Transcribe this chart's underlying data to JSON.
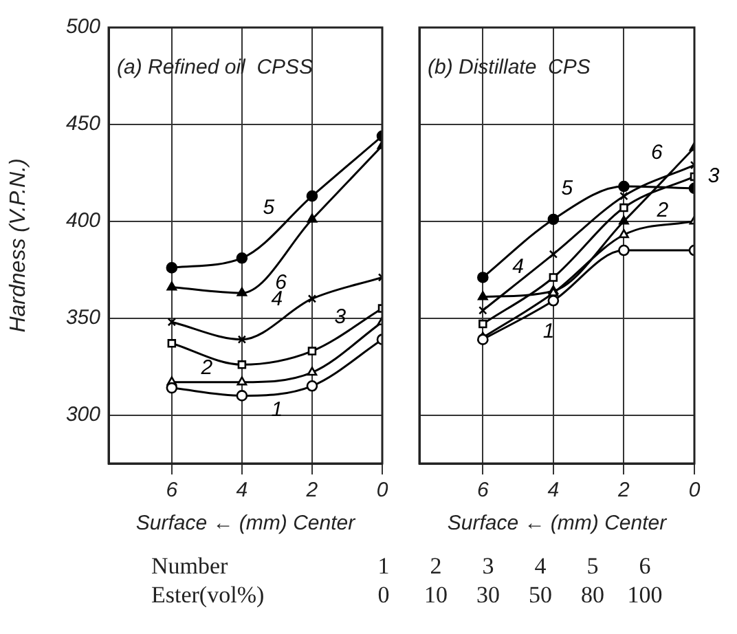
{
  "chart_data": [
    {
      "type": "line",
      "title": "(a) Refined oil  CPSS",
      "xlabel": "Surface ← (mm) Center",
      "ylabel": "Hardness (V.P.N.)",
      "x": [
        6,
        4,
        2,
        0
      ],
      "xlim": [
        7.8,
        0
      ],
      "xticks": [
        6,
        4,
        2,
        0
      ],
      "ylim": [
        275,
        500
      ],
      "yticks": [
        300,
        350,
        400,
        450,
        500
      ],
      "grid": true,
      "legend": false,
      "line_style": "solid",
      "series": [
        {
          "name": "1",
          "color": "#000000",
          "marker": "circle",
          "values": [
            314,
            310,
            315,
            339
          ]
        },
        {
          "name": "2",
          "color": "#000000",
          "marker": "triangle",
          "values": [
            317,
            317,
            322,
            348
          ]
        },
        {
          "name": "3",
          "color": "#000000",
          "marker": "square",
          "values": [
            337,
            326,
            333,
            355
          ]
        },
        {
          "name": "4",
          "color": "#000000",
          "marker": "cross",
          "values": [
            348,
            339,
            360,
            371
          ]
        },
        {
          "name": "5",
          "color": "#000000",
          "marker": "circle",
          "values": [
            376,
            381,
            413,
            444
          ]
        },
        {
          "name": "6",
          "color": "#000000",
          "marker": "triangle",
          "values": [
            366,
            363,
            401,
            439
          ]
        }
      ],
      "annotations": [
        "Number 1 2 3 4 5 6",
        "Ester(vol%) 0 10 30 50 80 100"
      ]
    },
    {
      "type": "line",
      "title": "(b) Distillate  CPS",
      "xlabel": "Surface ← (mm) Center",
      "x": [
        6,
        4,
        2,
        0
      ],
      "xlim": [
        7.8,
        0
      ],
      "xticks": [
        6,
        4,
        2,
        0
      ],
      "ylim": [
        275,
        500
      ],
      "yticks": [
        300,
        350,
        400,
        450,
        500
      ],
      "tick_labels": "x",
      "grid": true,
      "legend": false,
      "line_style": "solid",
      "series": [
        {
          "name": "1",
          "color": "#000000",
          "marker": "circle",
          "values": [
            339,
            359,
            385,
            385
          ]
        },
        {
          "name": "2",
          "color": "#000000",
          "marker": "triangle",
          "values": [
            340,
            363,
            393,
            400
          ]
        },
        {
          "name": "3",
          "color": "#000000",
          "marker": "square",
          "values": [
            347,
            371,
            407,
            423
          ]
        },
        {
          "name": "4",
          "color": "#000000",
          "marker": "cross",
          "values": [
            354,
            383,
            413,
            429
          ]
        },
        {
          "name": "5",
          "color": "#000000",
          "marker": "circle",
          "values": [
            371,
            401,
            418,
            417
          ]
        },
        {
          "name": "6",
          "color": "#000000",
          "marker": "triangle",
          "values": [
            361,
            364,
            400,
            438
          ]
        }
      ]
    }
  ]
}
